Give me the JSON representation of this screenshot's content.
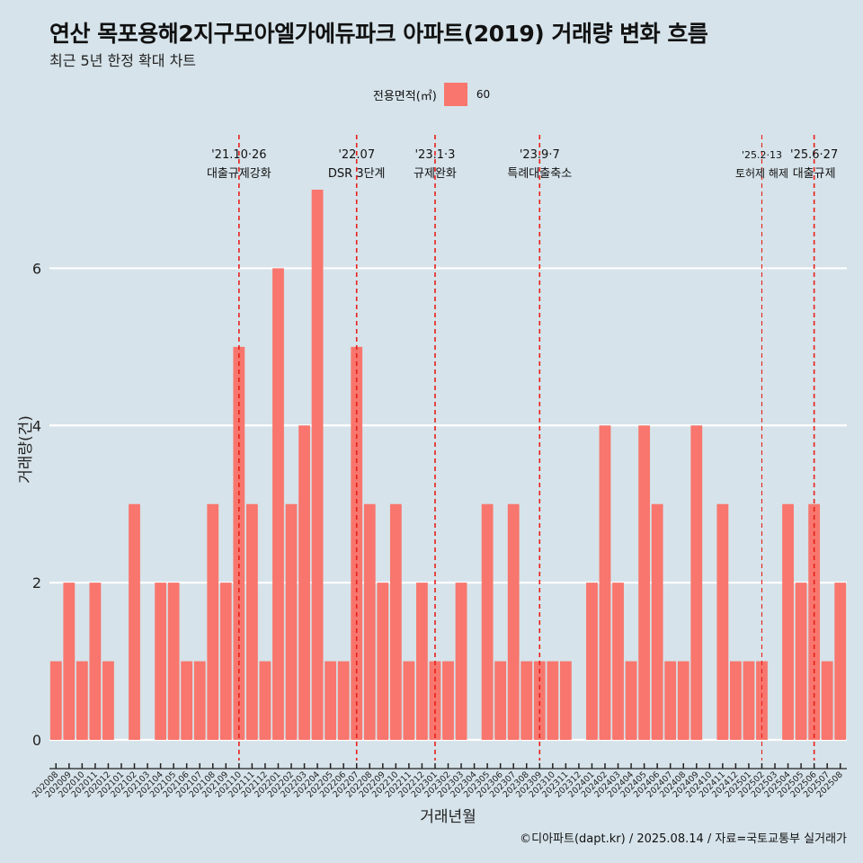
{
  "header": {
    "title": "연산 목포용해2지구모아엘가에듀파크 아파트(2019) 거래량 변화 흐름",
    "subtitle": "최근 5년 한정 확대 차트"
  },
  "legend": {
    "title": "전용면적(㎡)",
    "label": "60",
    "color": "#f8766d"
  },
  "caption": "©디아파트(dapt.kr) / 2025.08.14 / 자료=국토교통부 실거래가",
  "chart_data": {
    "type": "bar",
    "xlabel": "거래년월",
    "ylabel": "거래량(건)",
    "ylim": [
      0,
      7.6
    ],
    "yticks": [
      0,
      2,
      4,
      6
    ],
    "grid": true,
    "legend_position": "top",
    "bar_color": "#f8766d",
    "categories": [
      "202008",
      "202009",
      "202010",
      "202011",
      "202012",
      "202101",
      "202102",
      "202103",
      "202104",
      "202105",
      "202106",
      "202107",
      "202108",
      "202109",
      "202110",
      "202111",
      "202112",
      "202201",
      "202202",
      "202203",
      "202204",
      "202205",
      "202206",
      "202207",
      "202208",
      "202209",
      "202210",
      "202211",
      "202212",
      "202301",
      "202302",
      "202303",
      "202304",
      "202305",
      "202306",
      "202307",
      "202308",
      "202309",
      "202310",
      "202311",
      "202312",
      "202401",
      "202402",
      "202403",
      "202404",
      "202405",
      "202406",
      "202407",
      "202408",
      "202409",
      "202410",
      "202411",
      "202412",
      "202501",
      "202502",
      "202503",
      "202504",
      "202505",
      "202506",
      "202507",
      "202508"
    ],
    "series": [
      {
        "name": "60",
        "values": [
          1,
          2,
          1,
          2,
          1,
          0,
          3,
          0,
          2,
          2,
          1,
          1,
          3,
          2,
          5,
          3,
          1,
          6,
          3,
          4,
          7,
          1,
          1,
          5,
          3,
          2,
          3,
          1,
          2,
          1,
          1,
          2,
          0,
          3,
          1,
          3,
          1,
          1,
          1,
          1,
          0,
          2,
          4,
          2,
          1,
          4,
          3,
          1,
          1,
          4,
          0,
          3,
          1,
          1,
          1,
          0,
          3,
          2,
          3,
          1,
          2
        ]
      }
    ],
    "annotations": [
      {
        "category": "202110",
        "date": "'21.10·26",
        "text": "대출규제강화"
      },
      {
        "category": "202207",
        "date": "'22.07",
        "text": "DSR 3단계"
      },
      {
        "category": "202301",
        "date": "'23.1·3",
        "text": "규제완화"
      },
      {
        "category": "202309",
        "date": "'23.9·7",
        "text": "특례대출축소"
      },
      {
        "category": "202502",
        "date": "'25.2·13",
        "text": "토허제 해제"
      },
      {
        "category": "202506",
        "date": "'25.6·27",
        "text": "대출규제"
      }
    ]
  }
}
